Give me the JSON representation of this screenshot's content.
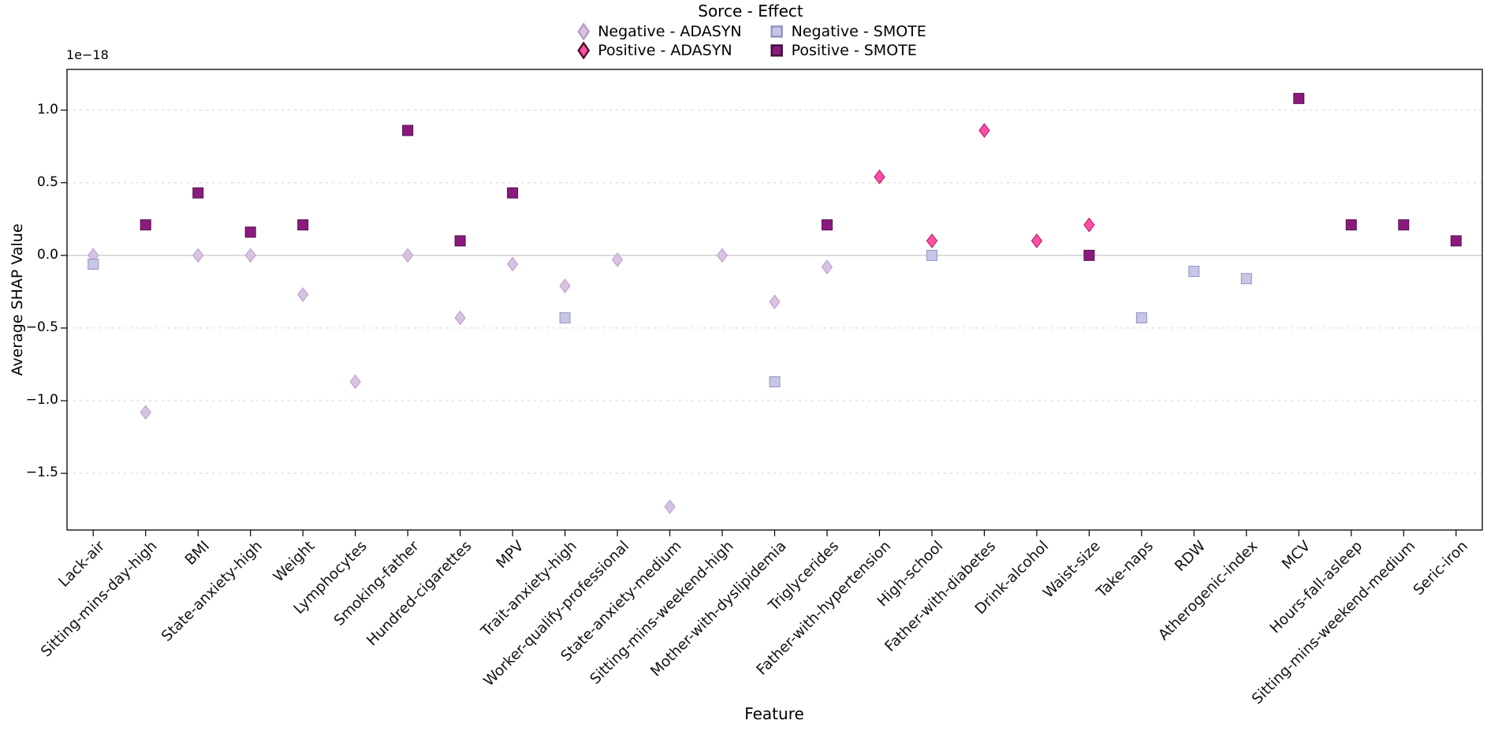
{
  "figure": {
    "ylabel": "Average SHAP Value",
    "xlabel": "Feature",
    "offset_text": "1e−18"
  },
  "legend": {
    "title": "Sorce - Effect",
    "entries": [
      {
        "label": "Negative - ADASYN",
        "marker": "diamond",
        "fill": "#d9c2e2",
        "edge": "#b79dc8"
      },
      {
        "label": "Negative - SMOTE",
        "marker": "square",
        "fill": "#c6c7e6",
        "edge": "#9193c4"
      },
      {
        "label": "Positive - ADASYN",
        "marker": "diamond",
        "fill": "#ff4fa3",
        "edge": "#4a1025"
      },
      {
        "label": "Positive - SMOTE",
        "marker": "square",
        "fill": "#8a1b7d",
        "edge": "#3f0b39"
      }
    ]
  },
  "chart_data": {
    "type": "scatter",
    "legend_title": "Sorce - Effect",
    "legend_position": "top-center",
    "xlabel": "Feature",
    "ylabel": "Average SHAP Value",
    "y_offset_text": "1e−18",
    "ylim": [
      -1.89,
      1.28
    ],
    "yticks": [
      1.0,
      0.5,
      0.0,
      -0.5,
      -1.0,
      -1.5
    ],
    "grid": "horizontal-dashed",
    "categories": [
      "Lack-air",
      "Sitting-mins-day-high",
      "BMI",
      "State-anxiety-high",
      "Weight",
      "Lymphocytes",
      "Smoking-father",
      "Hundred-cigarettes",
      "MPV",
      "Trait-anxiety-high",
      "Worker-qualify-professional",
      "State-anxiety-medium",
      "Sitting-mins-weekend-high",
      "Mother-with-dyslipidemia",
      "Triglycerides",
      "Father-with-hypertension",
      "High-school",
      "Father-with-diabetes",
      "Drink-alcohol",
      "Waist-size",
      "Take-naps",
      "RDW",
      "Atherogenic-index",
      "MCV",
      "Hours-fall-asleep",
      "Sitting-mins-weekend-medium",
      "Seric-iron"
    ],
    "series": [
      {
        "name": "Negative - ADASYN",
        "marker": "diamond",
        "fill": "#d9c2e2",
        "edge": "#b79dc8",
        "points": [
          {
            "feature": "Lack-air",
            "value": 0.0
          },
          {
            "feature": "Sitting-mins-day-high",
            "value": -1.08
          },
          {
            "feature": "BMI",
            "value": 0.0
          },
          {
            "feature": "State-anxiety-high",
            "value": 0.0
          },
          {
            "feature": "Weight",
            "value": -0.27
          },
          {
            "feature": "Lymphocytes",
            "value": -0.87
          },
          {
            "feature": "Smoking-father",
            "value": 0.0
          },
          {
            "feature": "Hundred-cigarettes",
            "value": -0.43
          },
          {
            "feature": "MPV",
            "value": -0.06
          },
          {
            "feature": "Trait-anxiety-high",
            "value": -0.21
          },
          {
            "feature": "Worker-qualify-professional",
            "value": -0.03
          },
          {
            "feature": "State-anxiety-medium",
            "value": -1.73
          },
          {
            "feature": "Sitting-mins-weekend-high",
            "value": 0.0
          },
          {
            "feature": "Mother-with-dyslipidemia",
            "value": -0.32
          },
          {
            "feature": "Triglycerides",
            "value": -0.08
          }
        ]
      },
      {
        "name": "Positive - ADASYN",
        "marker": "diamond",
        "fill": "#ff4fa3",
        "edge": "#b01060",
        "points": [
          {
            "feature": "Father-with-hypertension",
            "value": 0.54
          },
          {
            "feature": "High-school",
            "value": 0.1
          },
          {
            "feature": "Father-with-diabetes",
            "value": 0.86
          },
          {
            "feature": "Drink-alcohol",
            "value": 0.1
          },
          {
            "feature": "Waist-size",
            "value": 0.21
          }
        ]
      },
      {
        "name": "Negative - SMOTE",
        "marker": "square",
        "fill": "#c6c7e6",
        "edge": "#9193c4",
        "points": [
          {
            "feature": "Lack-air",
            "value": -0.06
          },
          {
            "feature": "Trait-anxiety-high",
            "value": -0.43
          },
          {
            "feature": "Mother-with-dyslipidemia",
            "value": -0.87
          },
          {
            "feature": "High-school",
            "value": 0.0
          },
          {
            "feature": "Take-naps",
            "value": -0.43
          },
          {
            "feature": "RDW",
            "value": -0.11
          },
          {
            "feature": "Atherogenic-index",
            "value": -0.16
          }
        ]
      },
      {
        "name": "Positive - SMOTE",
        "marker": "square",
        "fill": "#8a1b7d",
        "edge": "#530f4b",
        "points": [
          {
            "feature": "Sitting-mins-day-high",
            "value": 0.21
          },
          {
            "feature": "BMI",
            "value": 0.43
          },
          {
            "feature": "State-anxiety-high",
            "value": 0.16
          },
          {
            "feature": "Weight",
            "value": 0.21
          },
          {
            "feature": "Smoking-father",
            "value": 0.86
          },
          {
            "feature": "Hundred-cigarettes",
            "value": 0.1
          },
          {
            "feature": "MPV",
            "value": 0.43
          },
          {
            "feature": "Triglycerides",
            "value": 0.21
          },
          {
            "feature": "Waist-size",
            "value": 0.0
          },
          {
            "feature": "MCV",
            "value": 1.08
          },
          {
            "feature": "Hours-fall-asleep",
            "value": 0.21
          },
          {
            "feature": "Sitting-mins-weekend-medium",
            "value": 0.21
          },
          {
            "feature": "Seric-iron",
            "value": 0.1
          }
        ]
      }
    ]
  }
}
